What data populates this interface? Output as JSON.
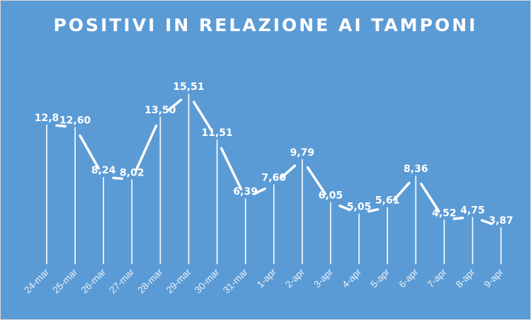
{
  "chart_data": {
    "type": "line",
    "title": "POSITIVI IN RELAZIONE AI TAMPONI",
    "xlabel": "",
    "ylabel": "",
    "categories": [
      "24-mar",
      "25-mar",
      "26-mar",
      "27-mar",
      "28-mar",
      "29-mar",
      "30-mar",
      "31-mar",
      "1-apr",
      "2-apr",
      "3-apr",
      "4-apr",
      "5-apr",
      "6-apr",
      "7-apr",
      "8-apr",
      "9-apr"
    ],
    "values": [
      12.8,
      12.6,
      8.24,
      8.02,
      13.5,
      15.51,
      11.51,
      6.39,
      7.6,
      9.79,
      6.05,
      5.05,
      5.61,
      8.36,
      4.52,
      4.75,
      3.87
    ],
    "data_labels": [
      "12,8",
      "12,60",
      "8,24",
      "8,02",
      "13,50",
      "15,51",
      "11,51",
      "6,39",
      "7,60",
      "9,79",
      "6,05",
      "5,05",
      "5,61",
      "8,36",
      "4,52",
      "4,75",
      "3,87"
    ],
    "ylim": [
      0,
      16
    ],
    "grid": false,
    "legend": "none",
    "colors": {
      "background": "#5b9bd5",
      "line": "#ffffff",
      "drop_line": "#ffffff",
      "text": "#ffffff"
    }
  }
}
